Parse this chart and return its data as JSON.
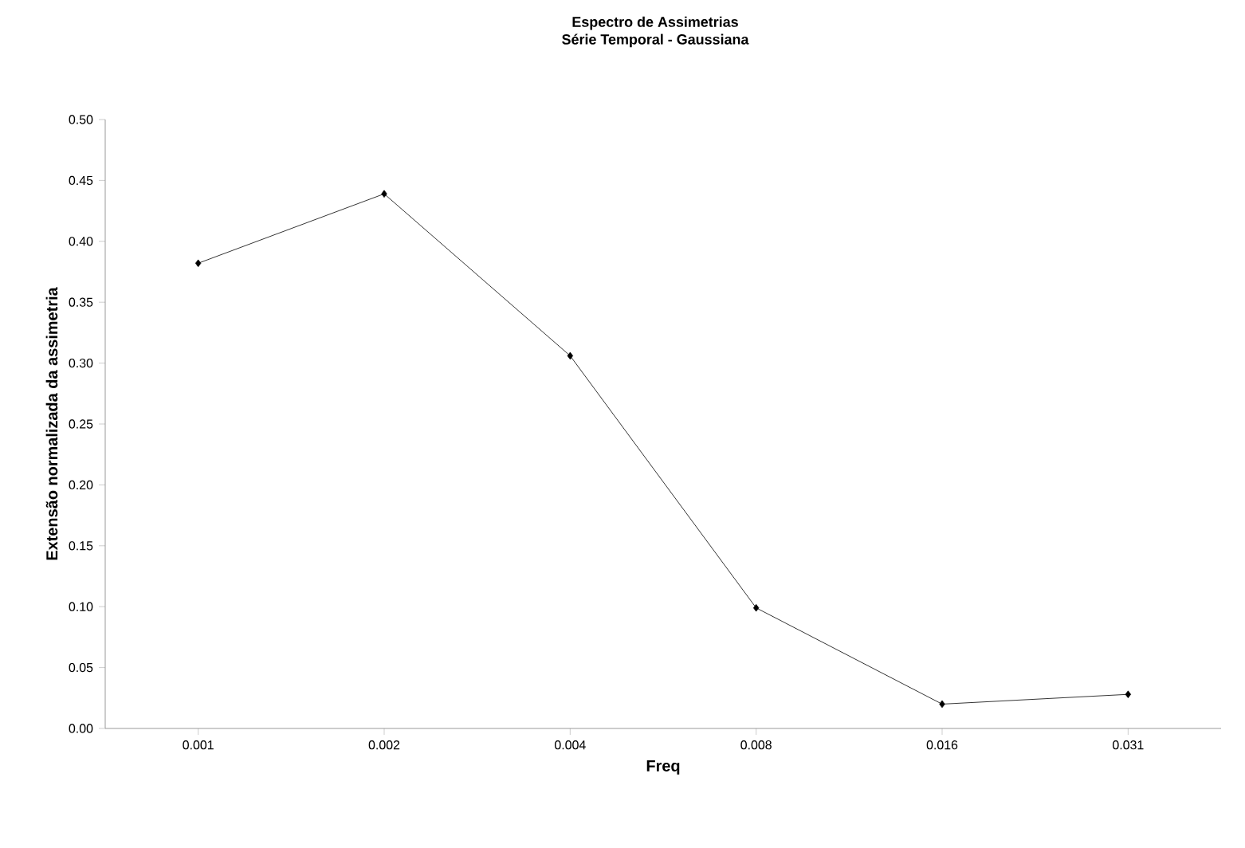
{
  "chart_data": {
    "type": "line",
    "title": "Espectro de Assimetrias",
    "subtitle": "Série Temporal - Gaussiana",
    "xlabel": "Freq",
    "ylabel": "Extensão normalizada da assimetria",
    "categories": [
      "0.001",
      "0.002",
      "0.004",
      "0.008",
      "0.016",
      "0.031"
    ],
    "values": [
      0.382,
      0.439,
      0.306,
      0.099,
      0.02,
      0.028
    ],
    "color": "#000000",
    "marker": "diamond",
    "ylim": [
      0,
      0.5
    ],
    "yticks": [
      {
        "value": 0,
        "label": "0.00"
      },
      {
        "value": 0.05,
        "label": "0.05"
      },
      {
        "value": 0.1,
        "label": "0.10"
      },
      {
        "value": 0.15,
        "label": "0.15"
      },
      {
        "value": 0.2,
        "label": "0.20"
      },
      {
        "value": 0.25,
        "label": "0.25"
      },
      {
        "value": 0.3,
        "label": "0.30"
      },
      {
        "value": 0.35,
        "label": "0.35"
      },
      {
        "value": 0.4,
        "label": "0.40"
      },
      {
        "value": 0.45,
        "label": "0.45"
      },
      {
        "value": 0.5,
        "label": "0.50"
      }
    ]
  }
}
